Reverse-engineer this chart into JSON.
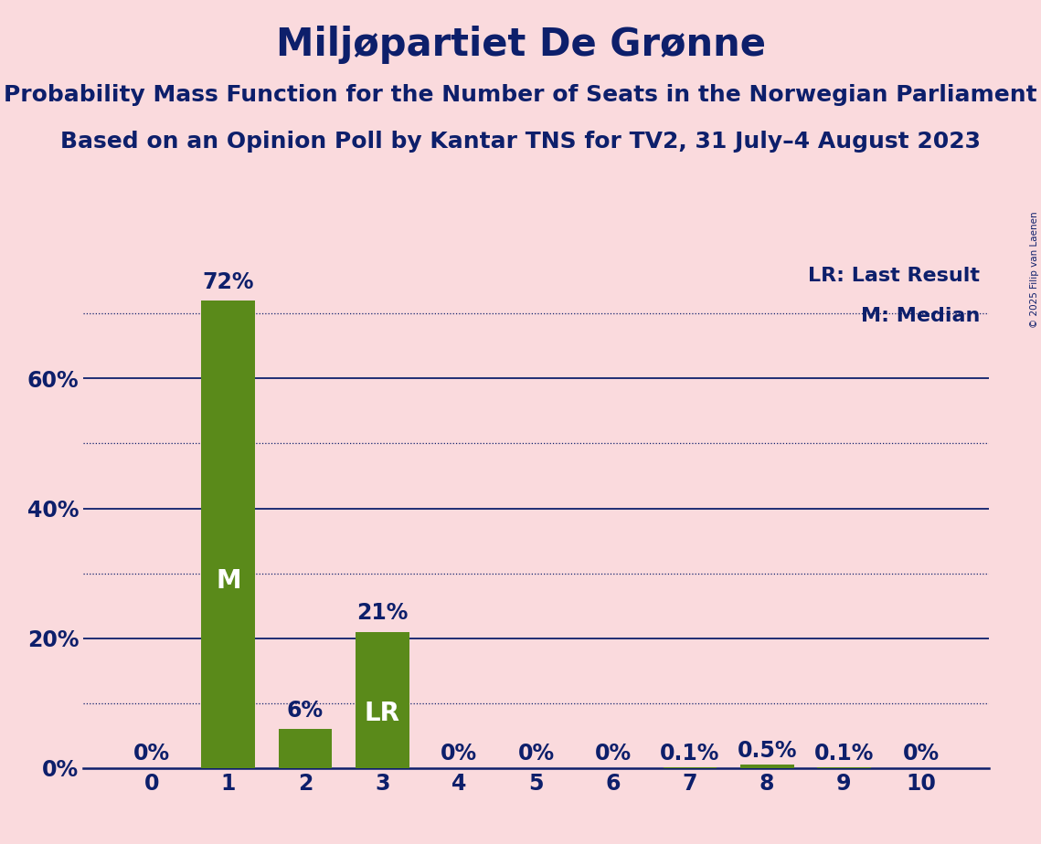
{
  "title": "Miljøpartiet De Grønne",
  "subtitle1": "Probability Mass Function for the Number of Seats in the Norwegian Parliament",
  "subtitle2": "Based on an Opinion Poll by Kantar TNS for TV2, 31 July–4 August 2023",
  "copyright": "© 2025 Filip van Laenen",
  "categories": [
    0,
    1,
    2,
    3,
    4,
    5,
    6,
    7,
    8,
    9,
    10
  ],
  "values": [
    0.0,
    72.0,
    6.0,
    21.0,
    0.0,
    0.0,
    0.0,
    0.1,
    0.5,
    0.1,
    0.0
  ],
  "value_labels": [
    "0%",
    "72%",
    "6%",
    "21%",
    "0%",
    "0%",
    "0%",
    "0.1%",
    "0.5%",
    "0.1%",
    "0%"
  ],
  "bar_color": "#5a8a1a",
  "bg_color": "#fadadd",
  "text_color": "#0d1f6b",
  "median_bar": 1,
  "last_result_bar": 3,
  "median_label": "M",
  "last_result_label": "LR",
  "legend_lr": "LR: Last Result",
  "legend_m": "M: Median",
  "ylim": [
    0,
    78
  ],
  "ytick_values": [
    0,
    20,
    40,
    60
  ],
  "ytick_labels": [
    "0%",
    "20%",
    "40%",
    "60%"
  ],
  "solid_yticks": [
    20,
    40,
    60
  ],
  "dotted_yticks": [
    10,
    30,
    50,
    70
  ],
  "title_fontsize": 30,
  "subtitle_fontsize": 18,
  "tick_fontsize": 17,
  "bar_label_fontsize": 17,
  "bar_inner_fontsize": 20,
  "legend_fontsize": 16
}
